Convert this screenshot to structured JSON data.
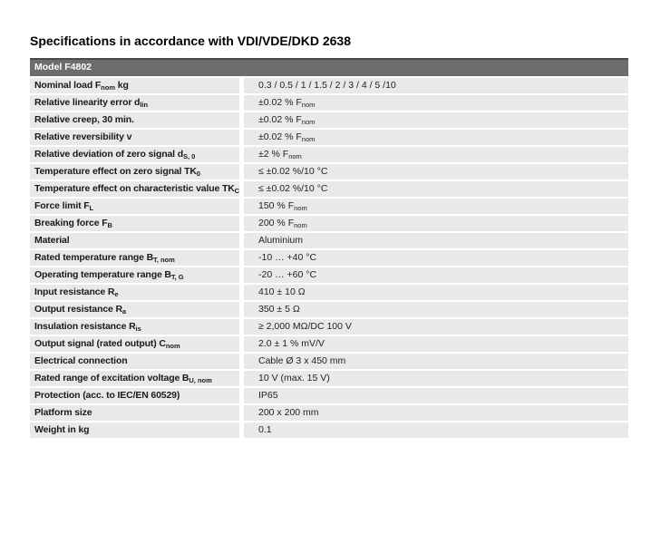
{
  "page": {
    "title": "Specifications in accordance with VDI/VDE/DKD 2638"
  },
  "colors": {
    "header_bg": "#6b6d6f",
    "header_top_border": "#48494b",
    "row_bg": "#e8e9e9",
    "header_text": "#ffffff",
    "body_text": "#1a1a1a"
  },
  "table": {
    "header": "Model F4802",
    "rows": [
      {
        "label": [
          {
            "t": "Nominal load F"
          },
          {
            "t": "nom",
            "sub": true
          },
          {
            "t": " kg"
          }
        ],
        "value": [
          {
            "t": "0.3 / 0.5 / 1 / 1.5 / 2 / 3 / 4 / 5 /10"
          }
        ]
      },
      {
        "label": [
          {
            "t": "Relative linearity error d"
          },
          {
            "t": "lin",
            "sub": true
          }
        ],
        "value": [
          {
            "t": "±0.02 % F"
          },
          {
            "t": "nom",
            "sub": true
          }
        ]
      },
      {
        "label": [
          {
            "t": "Relative creep, 30 min."
          }
        ],
        "value": [
          {
            "t": "±0.02 % F"
          },
          {
            "t": "nom",
            "sub": true
          }
        ]
      },
      {
        "label": [
          {
            "t": "Relative reversibility v"
          }
        ],
        "value": [
          {
            "t": "±0.02 % F"
          },
          {
            "t": "nom",
            "sub": true
          }
        ]
      },
      {
        "label": [
          {
            "t": "Relative deviation of zero signal d"
          },
          {
            "t": "S, 0",
            "sub": true
          }
        ],
        "value": [
          {
            "t": "±2 % F"
          },
          {
            "t": "nom",
            "sub": true
          }
        ]
      },
      {
        "label": [
          {
            "t": "Temperature effect on zero signal TK"
          },
          {
            "t": "0",
            "sub": true
          }
        ],
        "value": [
          {
            "t": "≤ ±0.02 %/10 °C"
          }
        ]
      },
      {
        "label": [
          {
            "t": "Temperature effect on characteristic value TK"
          },
          {
            "t": "C",
            "sub": true
          }
        ],
        "value": [
          {
            "t": "≤ ±0.02 %/10 °C"
          }
        ]
      },
      {
        "label": [
          {
            "t": "Force limit F"
          },
          {
            "t": "L",
            "sub": true
          }
        ],
        "value": [
          {
            "t": "150 % F"
          },
          {
            "t": "nom",
            "sub": true
          }
        ]
      },
      {
        "label": [
          {
            "t": "Breaking force F"
          },
          {
            "t": "B",
            "sub": true
          }
        ],
        "value": [
          {
            "t": "200 % F"
          },
          {
            "t": "nom",
            "sub": true
          }
        ]
      },
      {
        "label": [
          {
            "t": "Material"
          }
        ],
        "value": [
          {
            "t": "Aluminium"
          }
        ]
      },
      {
        "label": [
          {
            "t": "Rated temperature range B"
          },
          {
            "t": "T, nom",
            "sub": true
          }
        ],
        "value": [
          {
            "t": "-10 … +40 °C"
          }
        ]
      },
      {
        "label": [
          {
            "t": "Operating temperature range B"
          },
          {
            "t": "T, G",
            "sub": true
          }
        ],
        "value": [
          {
            "t": "-20 … +60 °C"
          }
        ]
      },
      {
        "label": [
          {
            "t": "Input resistance R"
          },
          {
            "t": "e",
            "sub": true
          }
        ],
        "value": [
          {
            "t": "410 ± 10 Ω"
          }
        ]
      },
      {
        "label": [
          {
            "t": "Output resistance R"
          },
          {
            "t": "a",
            "sub": true
          }
        ],
        "value": [
          {
            "t": "350 ± 5 Ω"
          }
        ]
      },
      {
        "label": [
          {
            "t": "Insulation resistance R"
          },
          {
            "t": "is",
            "sub": true
          }
        ],
        "value": [
          {
            "t": "≥ 2,000 MΩ/DC 100 V"
          }
        ]
      },
      {
        "label": [
          {
            "t": "Output signal (rated output) C"
          },
          {
            "t": "nom",
            "sub": true
          }
        ],
        "value": [
          {
            "t": "2.0 ± 1 % mV/V"
          }
        ]
      },
      {
        "label": [
          {
            "t": "Electrical connection"
          }
        ],
        "value": [
          {
            "t": "Cable Ø 3 x 450 mm"
          }
        ]
      },
      {
        "label": [
          {
            "t": "Rated range of excitation voltage B"
          },
          {
            "t": "U, nom",
            "sub": true
          }
        ],
        "value": [
          {
            "t": "10 V (max. 15 V)"
          }
        ]
      },
      {
        "label": [
          {
            "t": "Protection (acc. to IEC/EN 60529)"
          }
        ],
        "value": [
          {
            "t": "IP65"
          }
        ]
      },
      {
        "label": [
          {
            "t": "Platform size"
          }
        ],
        "value": [
          {
            "t": "200 x 200 mm"
          }
        ]
      },
      {
        "label": [
          {
            "t": "Weight in kg"
          }
        ],
        "value": [
          {
            "t": "0.1"
          }
        ]
      }
    ]
  }
}
